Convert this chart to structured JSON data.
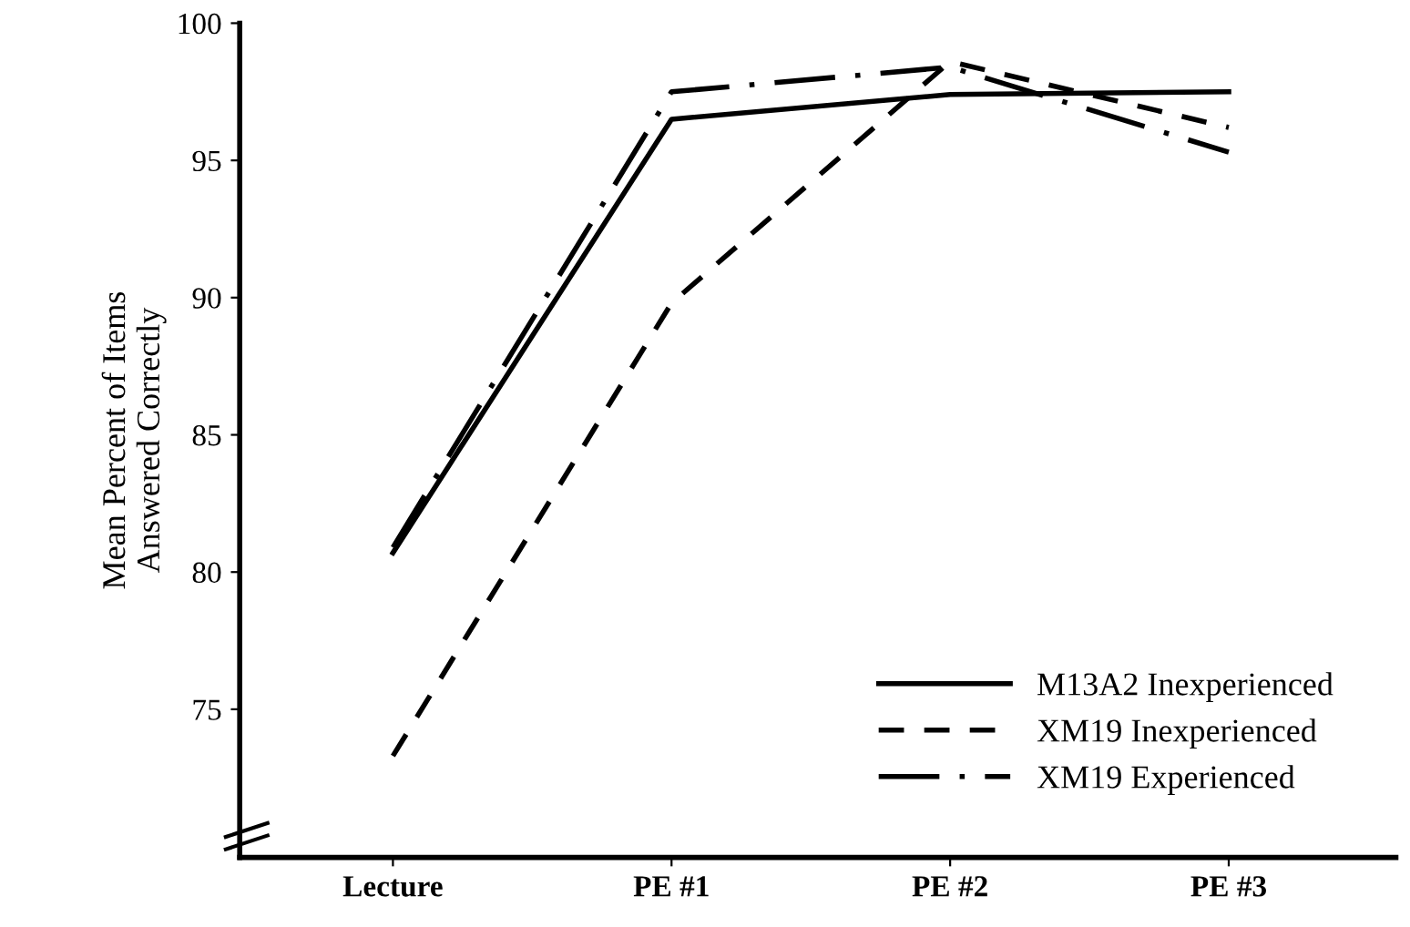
{
  "chart_data": {
    "type": "line",
    "ylabel": "Mean Percent of Items\nAnswered Correctly",
    "categories": [
      "Lecture",
      "PE #1",
      "PE #2",
      "PE #3"
    ],
    "series": [
      {
        "name": "M13A2 Inexperienced",
        "color": "#000000",
        "line_style": "solid",
        "values": [
          80.7,
          96.5,
          97.4,
          97.5
        ]
      },
      {
        "name": "XM19 Inexperienced",
        "color": "#000000",
        "line_style": "dashed",
        "values": [
          73.3,
          89.8,
          98.6,
          96.2
        ]
      },
      {
        "name": "XM19 Experienced",
        "color": "#000000",
        "line_style": "dashdot",
        "values": [
          80.9,
          97.5,
          98.4,
          95.3
        ]
      }
    ],
    "ylim": [
      69.6,
      100
    ],
    "yticks": [
      75,
      80,
      85,
      90,
      95,
      100
    ],
    "grid": false,
    "legend": "bottom right",
    "marker": "none"
  }
}
